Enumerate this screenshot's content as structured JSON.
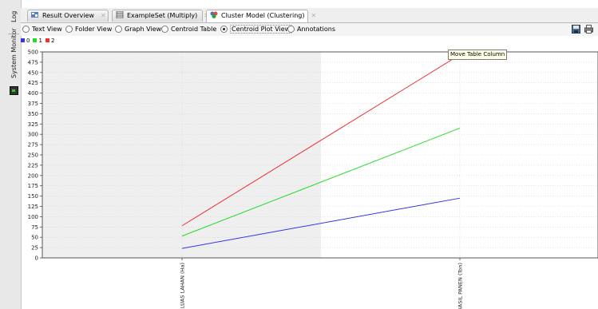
{
  "side_panel": {
    "log_label": "Log",
    "system_monitor_label": "System Monitor"
  },
  "tabs": [
    {
      "label": "Result Overview",
      "icon": "result-overview-icon",
      "active": false
    },
    {
      "label": "ExampleSet (Multiply)",
      "icon": "table-icon",
      "active": false
    },
    {
      "label": "Cluster Model (Clustering)",
      "icon": "cluster-icon",
      "active": true
    }
  ],
  "view_options": [
    {
      "label": "Text View",
      "selected": false
    },
    {
      "label": "Folder View",
      "selected": false
    },
    {
      "label": "Graph View",
      "selected": false
    },
    {
      "label": "Centroid Table",
      "selected": false
    },
    {
      "label": "Centroid Plot View",
      "selected": true
    },
    {
      "label": "Annotations",
      "selected": false
    }
  ],
  "toolbar_icons": [
    "save-icon",
    "print-icon"
  ],
  "tooltip": "Move Table Column",
  "colors": {
    "cluster_0": "#3333ee",
    "cluster_1": "#22dd22",
    "cluster_2": "#ee3333",
    "highlight_band": "#efefef"
  },
  "chart_data": {
    "type": "line",
    "categories": [
      "LUAS LAHAN (Ha)",
      "HASIL PANEN (Ton)"
    ],
    "series": [
      {
        "name": "0",
        "color": "#3333ee",
        "values": [
          23,
          145
        ]
      },
      {
        "name": "1",
        "color": "#22dd22",
        "values": [
          53,
          315
        ]
      },
      {
        "name": "2",
        "color": "#ee3333",
        "values": [
          78,
          493
        ]
      }
    ],
    "ylim": [
      0,
      500
    ],
    "yticks": [
      0,
      25,
      50,
      75,
      100,
      125,
      150,
      175,
      200,
      225,
      250,
      275,
      300,
      325,
      350,
      375,
      400,
      425,
      450,
      475,
      500
    ],
    "grid": true,
    "legend": "top-left",
    "title": "",
    "xlabel": "",
    "ylabel": ""
  }
}
